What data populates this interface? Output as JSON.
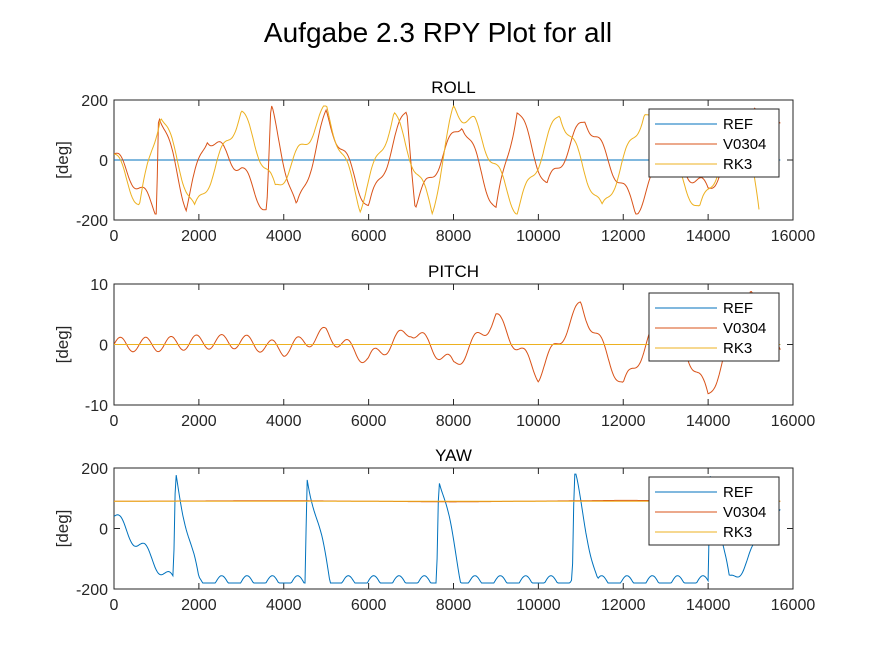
{
  "figure": {
    "title": "Aufgabe 2.3 RPY Plot for all"
  },
  "colors": {
    "REF": "#0072BD",
    "V0304": "#D95319",
    "RK3": "#EDB120"
  },
  "chart_data": [
    {
      "type": "line",
      "title": "ROLL",
      "xlabel": "",
      "ylabel": "[deg]",
      "xlim": [
        0,
        16000
      ],
      "ylim": [
        -200,
        200
      ],
      "xticks": [
        0,
        2000,
        4000,
        6000,
        8000,
        10000,
        12000,
        14000,
        16000
      ],
      "yticks": [
        -200,
        0,
        200
      ],
      "legend_position": "top-right",
      "series": [
        {
          "name": "REF",
          "values": [
            0,
            0
          ],
          "x": [
            0,
            15700
          ],
          "description_values": "constant 0"
        },
        {
          "name": "V0304",
          "x": [
            0,
            1000,
            1050,
            1700,
            2200,
            3000,
            3600,
            3700,
            4300,
            5000,
            6000,
            6900,
            7100,
            8200,
            9000,
            9500,
            10200,
            11100,
            12300,
            13000,
            14000,
            15100,
            15700
          ],
          "values": [
            20,
            -170,
            170,
            -150,
            80,
            -30,
            -170,
            170,
            -170,
            150,
            -160,
            170,
            -150,
            130,
            -170,
            170,
            -90,
            140,
            -170,
            20,
            -100,
            150,
            100
          ]
        },
        {
          "name": "RK3",
          "x": [
            0,
            600,
            1100,
            1900,
            3000,
            3800,
            5000,
            5800,
            6600,
            7500,
            8000,
            8500,
            9500,
            10500,
            11500,
            12500,
            13800,
            14800,
            15200
          ],
          "values": [
            20,
            -150,
            160,
            -170,
            160,
            -100,
            170,
            -150,
            150,
            -170,
            170,
            120,
            -170,
            160,
            -170,
            160,
            -170,
            160,
            -170
          ]
        }
      ]
    },
    {
      "type": "line",
      "title": "PITCH",
      "xlabel": "",
      "ylabel": "[deg]",
      "xlim": [
        0,
        16000
      ],
      "ylim": [
        -10,
        10
      ],
      "xticks": [
        0,
        2000,
        4000,
        6000,
        8000,
        10000,
        12000,
        14000,
        16000
      ],
      "yticks": [
        -10,
        0,
        10
      ],
      "legend_position": "top-right",
      "series": [
        {
          "name": "REF",
          "x": [
            0,
            15700
          ],
          "values": [
            0,
            0
          ]
        },
        {
          "name": "V0304",
          "x": [
            0,
            1000,
            2000,
            3000,
            4000,
            5000,
            6000,
            7000,
            8000,
            9000,
            10000,
            11000,
            12000,
            13000,
            14000,
            15000,
            15700
          ],
          "values": [
            0,
            0,
            0.4,
            0.5,
            -0.8,
            1.8,
            -2.5,
            2.5,
            -3.5,
            4.5,
            -5,
            6.5,
            -7,
            6,
            -8.5,
            8,
            -2
          ]
        },
        {
          "name": "RK3",
          "x": [
            0,
            15700
          ],
          "values": [
            0,
            0
          ]
        }
      ]
    },
    {
      "type": "line",
      "title": "YAW",
      "xlabel": "",
      "ylabel": "[deg]",
      "xlim": [
        0,
        16000
      ],
      "ylim": [
        -200,
        200
      ],
      "xticks": [
        0,
        2000,
        4000,
        6000,
        8000,
        10000,
        12000,
        14000,
        16000
      ],
      "yticks": [
        -200,
        0,
        200
      ],
      "legend_position": "top-right",
      "series": [
        {
          "name": "REF",
          "x": [
            0,
            1400,
            1450,
            2000,
            4500,
            4550,
            5100,
            7600,
            7650,
            8200,
            10800,
            10850,
            11400,
            14000,
            14050,
            14500,
            15700
          ],
          "values": [
            40,
            -180,
            180,
            -180,
            -180,
            180,
            -180,
            -180,
            180,
            -180,
            -180,
            180,
            -180,
            -180,
            180,
            -180,
            40
          ]
        },
        {
          "name": "V0304",
          "x": [
            0,
            4000,
            8000,
            12000,
            15700
          ],
          "values": [
            90,
            92,
            88,
            93,
            90
          ]
        },
        {
          "name": "RK3",
          "x": [
            0,
            15700
          ],
          "values": [
            90,
            90
          ]
        }
      ]
    }
  ]
}
